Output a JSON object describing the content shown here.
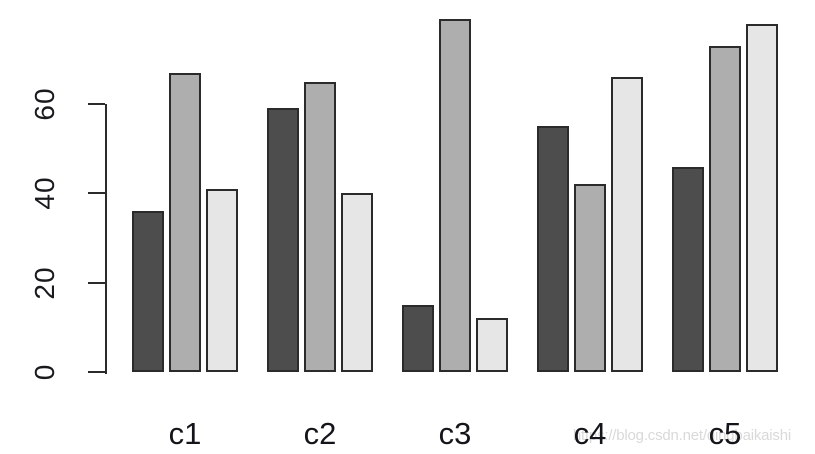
{
  "chart_data": {
    "type": "bar",
    "title": "",
    "xlabel": "",
    "ylabel": "",
    "categories": [
      "c1",
      "c2",
      "c3",
      "c4",
      "c5"
    ],
    "series": [
      {
        "name": "dark-gray",
        "color": "#4D4D4D",
        "values": [
          36,
          59,
          15,
          55,
          46
        ]
      },
      {
        "name": "medium-gray",
        "color": "#AEAEAE",
        "values": [
          67,
          65,
          79,
          42,
          73
        ]
      },
      {
        "name": "light-gray",
        "color": "#E6E6E6",
        "values": [
          41,
          40,
          12,
          66,
          78
        ]
      }
    ],
    "yticks": [
      0,
      20,
      40,
      60
    ],
    "ylim": [
      0,
      80
    ],
    "grid": false,
    "legend_position": "none",
    "bar_border_color": "#2B2B2B",
    "axis_color": "#2B2B2B",
    "tick_label_color": "#1A1A1E",
    "category_label_color": "#14141A",
    "background_color": "#FFFFFF"
  },
  "watermark": {
    "text": "https://blog.csdn.net/qingbaikaishi",
    "color": "#D9D9D9"
  }
}
